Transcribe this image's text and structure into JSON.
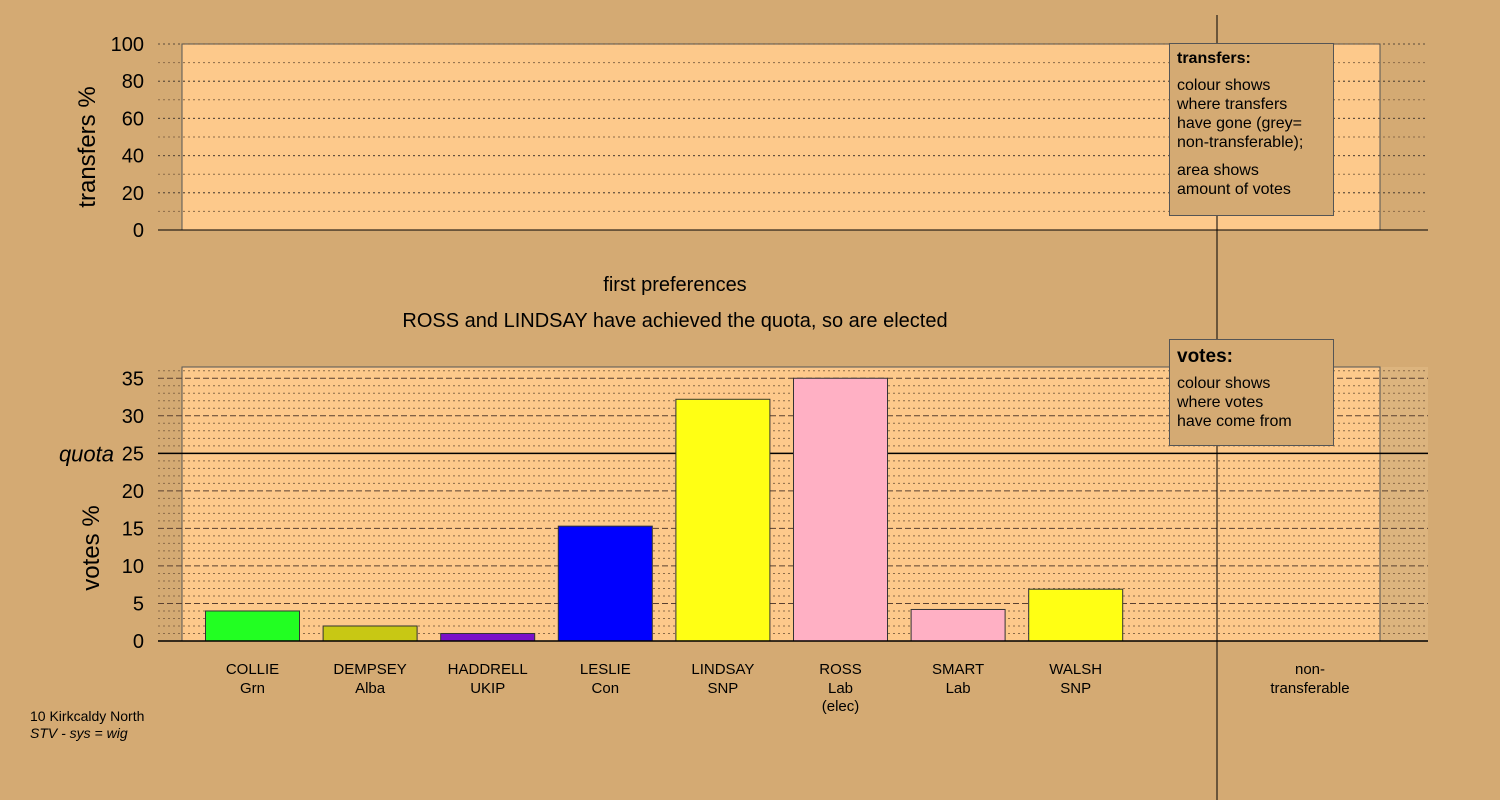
{
  "chart_data": [
    {
      "type": "area",
      "ylabel": "transfers %",
      "ylim": [
        0,
        100
      ],
      "yticks": [
        0,
        20,
        40,
        60,
        80,
        100
      ],
      "series": []
    },
    {
      "type": "bar",
      "title": "first preferences",
      "subtitle": "ROSS and LINDSAY have achieved the quota, so are elected",
      "ylabel": "votes %",
      "ylim": [
        0,
        36.5
      ],
      "yticks": [
        0,
        5,
        10,
        15,
        20,
        25,
        30,
        35
      ],
      "quota": 25,
      "quota_label": "quota",
      "categories": [
        {
          "name": "COLLIE",
          "party": "Grn",
          "note": "",
          "value": 4.0,
          "color": "#22ff22"
        },
        {
          "name": "DEMPSEY",
          "party": "Alba",
          "note": "",
          "value": 2.0,
          "color": "#c8c814"
        },
        {
          "name": "HADDRELL",
          "party": "UKIP",
          "note": "",
          "value": 1.0,
          "color": "#7a10c8"
        },
        {
          "name": "LESLIE",
          "party": "Con",
          "note": "",
          "value": 15.3,
          "color": "#0000ff"
        },
        {
          "name": "LINDSAY",
          "party": "SNP",
          "note": "",
          "value": 32.2,
          "color": "#ffff14"
        },
        {
          "name": "ROSS",
          "party": "Lab",
          "note": "(elec)",
          "value": 35.0,
          "color": "#ffb0c4"
        },
        {
          "name": "SMART",
          "party": "Lab",
          "note": "",
          "value": 4.2,
          "color": "#ffb0c4"
        },
        {
          "name": "WALSH",
          "party": "SNP",
          "note": "",
          "value": 6.9,
          "color": "#ffff14"
        }
      ],
      "nontransferable_label": [
        "non-",
        "transferable"
      ]
    }
  ],
  "legend_transfers": {
    "title": "transfers:",
    "lines1": [
      "colour shows",
      "where transfers",
      "have gone (grey=",
      "non-transferable);"
    ],
    "lines2": [
      "area shows",
      "amount of votes"
    ]
  },
  "legend_votes": {
    "title": "votes:",
    "lines": [
      "colour shows",
      "where votes",
      "have come from"
    ]
  },
  "footer": {
    "constituency": "10 Kirkcaldy North",
    "system": "STV - sys = wig"
  },
  "colors": {
    "page_bg": "#d4aa73",
    "plot_bg": "#fdc98b",
    "nontransferable_bg": "#dcb47e"
  }
}
